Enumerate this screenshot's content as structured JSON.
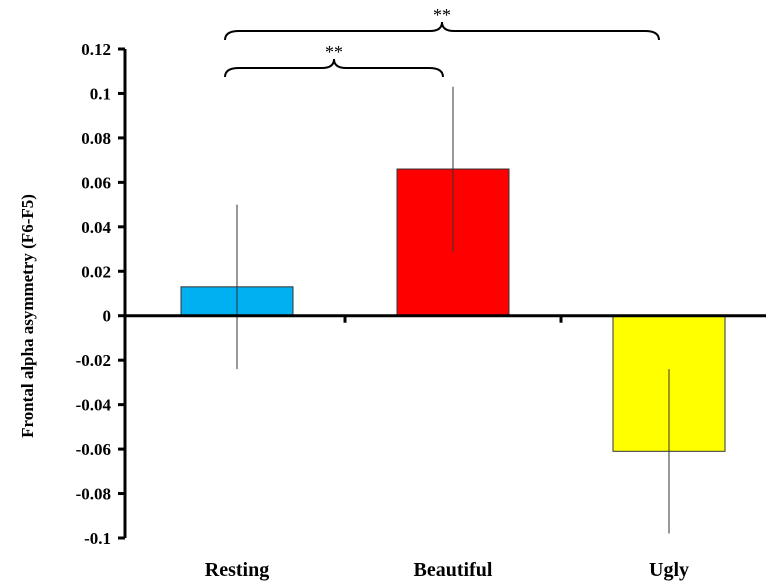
{
  "chart_data": {
    "type": "bar",
    "categories": [
      "Resting",
      "Beautiful",
      "Ugly"
    ],
    "values": [
      0.013,
      0.066,
      -0.061
    ],
    "error_bars": [
      {
        "low": -0.024,
        "high": 0.05
      },
      {
        "low": 0.029,
        "high": 0.103
      },
      {
        "low": -0.098,
        "high": -0.024
      }
    ],
    "colors": [
      "#00b0f0",
      "#ff0000",
      "#ffff00"
    ],
    "ylabel": "Frontal alpha asymmetry (F6-F5)",
    "xlabel": "",
    "ylim": [
      -0.1,
      0.12
    ],
    "yticks": [
      -0.1,
      -0.08,
      -0.06,
      -0.04,
      -0.02,
      0,
      0.02,
      0.04,
      0.06,
      0.08,
      0.1,
      0.12
    ],
    "ytick_labels": [
      "-0.1",
      "-0.08",
      "-0.06",
      "-0.04",
      "-0.02",
      "0",
      "0.02",
      "0.04",
      "0.06",
      "0.08",
      "0.1",
      "0.12"
    ],
    "grid": false,
    "significance": [
      {
        "from": "Resting",
        "to": "Beautiful",
        "label": "**"
      },
      {
        "from": "Resting",
        "to": "Ugly",
        "label": "**"
      }
    ]
  }
}
